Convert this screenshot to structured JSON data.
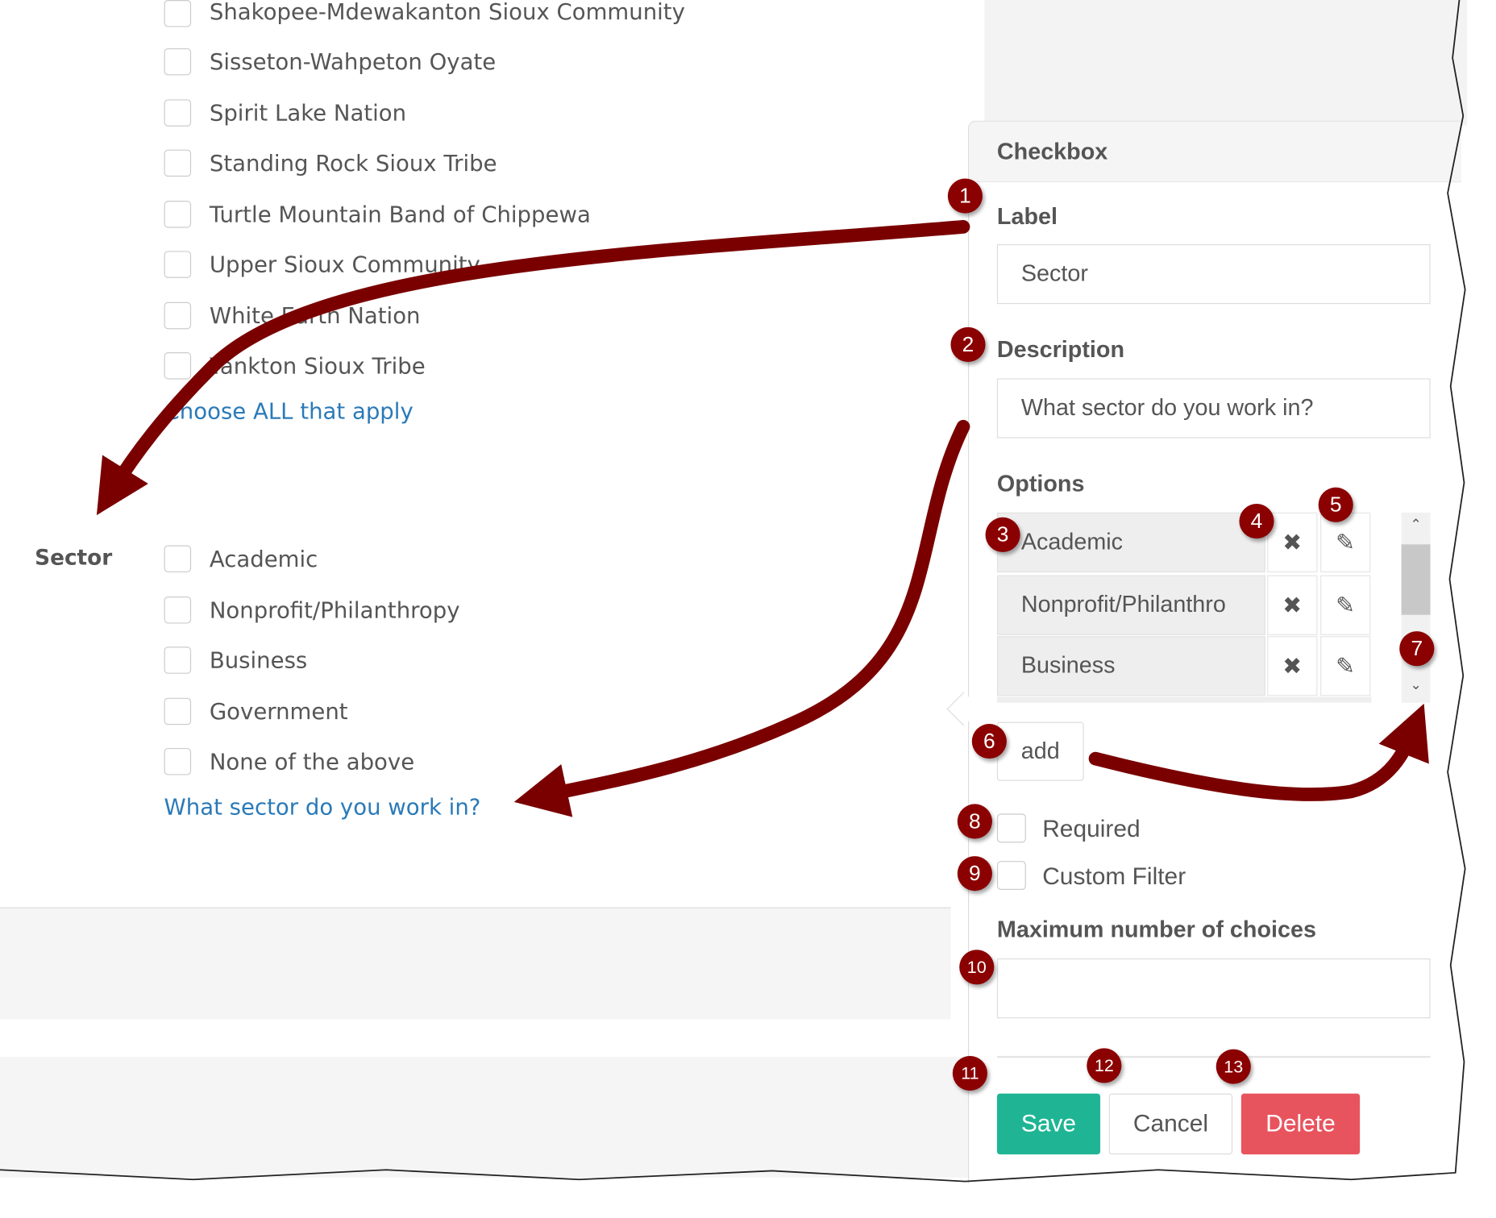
{
  "form_preview": {
    "tribes": [
      "Shakopee-Mdewakanton Sioux Community",
      "Sisseton-Wahpeton Oyate",
      "Spirit Lake Nation",
      "Standing Rock Sioux Tribe",
      "Turtle Mountain Band of Chippewa",
      "Upper Sioux Community",
      "White Earth Nation",
      "Yankton Sioux Tribe"
    ],
    "tribes_help": "Choose ALL that apply",
    "sector_label": "Sector",
    "sector_options": [
      "Academic",
      "Nonprofit/Philanthropy",
      "Business",
      "Government",
      "None of the above"
    ],
    "sector_help": "What sector do you work in?"
  },
  "editor": {
    "title": "Checkbox",
    "label_heading": "Label",
    "label_value": "Sector",
    "description_heading": "Description",
    "description_value": "What sector do you work in?",
    "options_heading": "Options",
    "options": [
      "Academic",
      "Nonprofit/Philanthro",
      "Business"
    ],
    "add_label": "add",
    "required_label": "Required",
    "custom_filter_label": "Custom Filter",
    "max_choices_heading": "Maximum number of choices",
    "max_choices_value": "",
    "save_label": "Save",
    "cancel_label": "Cancel",
    "delete_label": "Delete"
  },
  "callouts": [
    "1",
    "2",
    "3",
    "4",
    "5",
    "6",
    "7",
    "8",
    "9",
    "10",
    "11",
    "12",
    "13"
  ],
  "colors": {
    "save": "#1fb594",
    "delete": "#e8545e",
    "callout": "#8b0000",
    "link": "#2a7ab8"
  }
}
